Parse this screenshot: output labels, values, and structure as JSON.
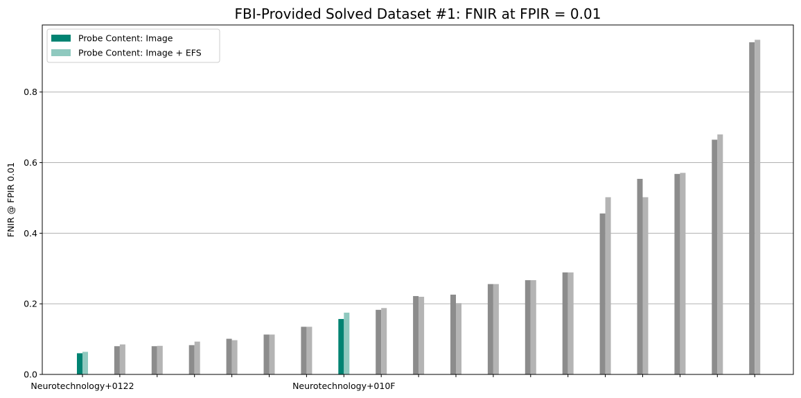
{
  "chart_data": {
    "type": "bar",
    "title": "FBI-Provided Solved Dataset #1: FNIR at FPIR = 0.01",
    "xlabel": "",
    "ylabel": "FNIR @ FPIR 0.01",
    "ylim": [
      0,
      0.99
    ],
    "yticks": [
      "0.0",
      "0.2",
      "0.4",
      "0.6",
      "0.8"
    ],
    "ytick_values": [
      0.0,
      0.2,
      0.4,
      0.6,
      0.8
    ],
    "grid": "horizontal",
    "legend_position": "top-left",
    "categories": [
      "Neurotechnology+0122",
      "",
      "",
      "",
      "",
      "",
      "",
      "Neurotechnology+010F",
      "",
      "",
      "",
      "",
      "",
      "",
      "",
      "",
      "",
      "",
      ""
    ],
    "highlighted": [
      0,
      7
    ],
    "series": [
      {
        "name": "Probe Content: Image",
        "color": "#008372",
        "muted_color": "#8c8c8c",
        "values": [
          0.06,
          0.08,
          0.08,
          0.083,
          0.101,
          0.113,
          0.135,
          0.157,
          0.183,
          0.222,
          0.226,
          0.256,
          0.267,
          0.289,
          0.456,
          0.554,
          0.568,
          0.665,
          0.941
        ]
      },
      {
        "name": "Probe Content: Image + EFS",
        "color": "#8fc9bf",
        "muted_color": "#b4b4b4",
        "values": [
          0.064,
          0.085,
          0.081,
          0.093,
          0.097,
          0.113,
          0.135,
          0.175,
          0.188,
          0.22,
          0.202,
          0.256,
          0.267,
          0.289,
          0.502,
          0.502,
          0.571,
          0.68,
          0.948
        ]
      }
    ]
  }
}
